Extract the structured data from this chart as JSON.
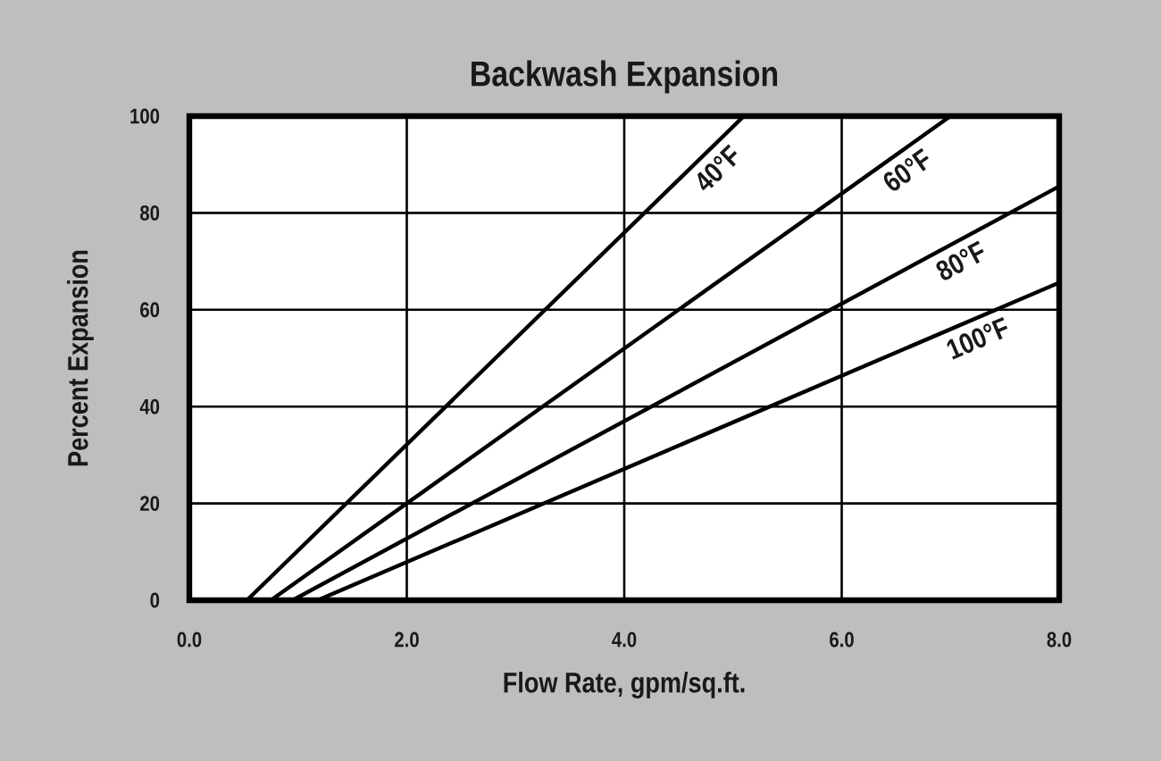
{
  "chart_data": {
    "type": "line",
    "title": "Backwash Expansion",
    "xlabel": "Flow Rate, gpm/sq.ft.",
    "ylabel": "Percent Expansion",
    "xlim": [
      0,
      8
    ],
    "ylim": [
      0,
      100
    ],
    "xticks": [
      {
        "value": 0,
        "label": "0.0"
      },
      {
        "value": 2,
        "label": "2.0"
      },
      {
        "value": 4,
        "label": "4.0"
      },
      {
        "value": 6,
        "label": "6.0"
      },
      {
        "value": 8,
        "label": "8.0"
      }
    ],
    "yticks": [
      0,
      20,
      40,
      60,
      80,
      100
    ],
    "grid": true,
    "line_style": "solid",
    "series": [
      {
        "name": "40°F",
        "color": "#000000",
        "x": [
          0.53,
          5.1
        ],
        "values": [
          0,
          100
        ]
      },
      {
        "name": "60°F",
        "color": "#000000",
        "x": [
          0.75,
          7.0
        ],
        "values": [
          0,
          100
        ]
      },
      {
        "name": "80°F",
        "color": "#000000",
        "x": [
          0.95,
          8.0
        ],
        "values": [
          0,
          85.5
        ]
      },
      {
        "name": "100°F",
        "color": "#000000",
        "x": [
          1.18,
          8.0
        ],
        "values": [
          0,
          65.6
        ]
      }
    ]
  }
}
